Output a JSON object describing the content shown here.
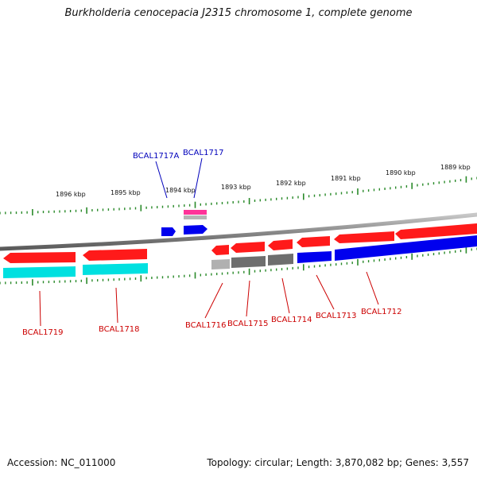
{
  "title": "Burkholderia cenocepacia J2315 chromosome 1, complete genome",
  "footer": {
    "accession": "Accession: NC_011000",
    "summary": "Topology: circular; Length: 3,870,082 bp; Genes: 3,557"
  },
  "ruler_labels": [
    "1896 kbp",
    "1895 kbp",
    "1894 kbp",
    "1893 kbp",
    "1892 kbp",
    "1891 kbp",
    "1890 kbp",
    "1889 kbp"
  ],
  "gene_labels_top": [
    "BCAL1717A",
    "BCAL1717"
  ],
  "gene_labels_bottom": [
    "BCAL1719",
    "BCAL1718",
    "BCAL1716",
    "BCAL1715",
    "BCAL1714",
    "BCAL1713",
    "BCAL1712"
  ],
  "colors": {
    "gene_red": "#ff1a1a",
    "gene_blue": "#0000ee",
    "gene_cyan": "#00e0e0",
    "gene_gray": "#707070",
    "gene_light_gray": "#b0b0b0",
    "gene_pink": "#ff3399",
    "tick_green": "#2a8a2a",
    "label_red": "#cc0000",
    "label_blue": "#0000bb"
  }
}
